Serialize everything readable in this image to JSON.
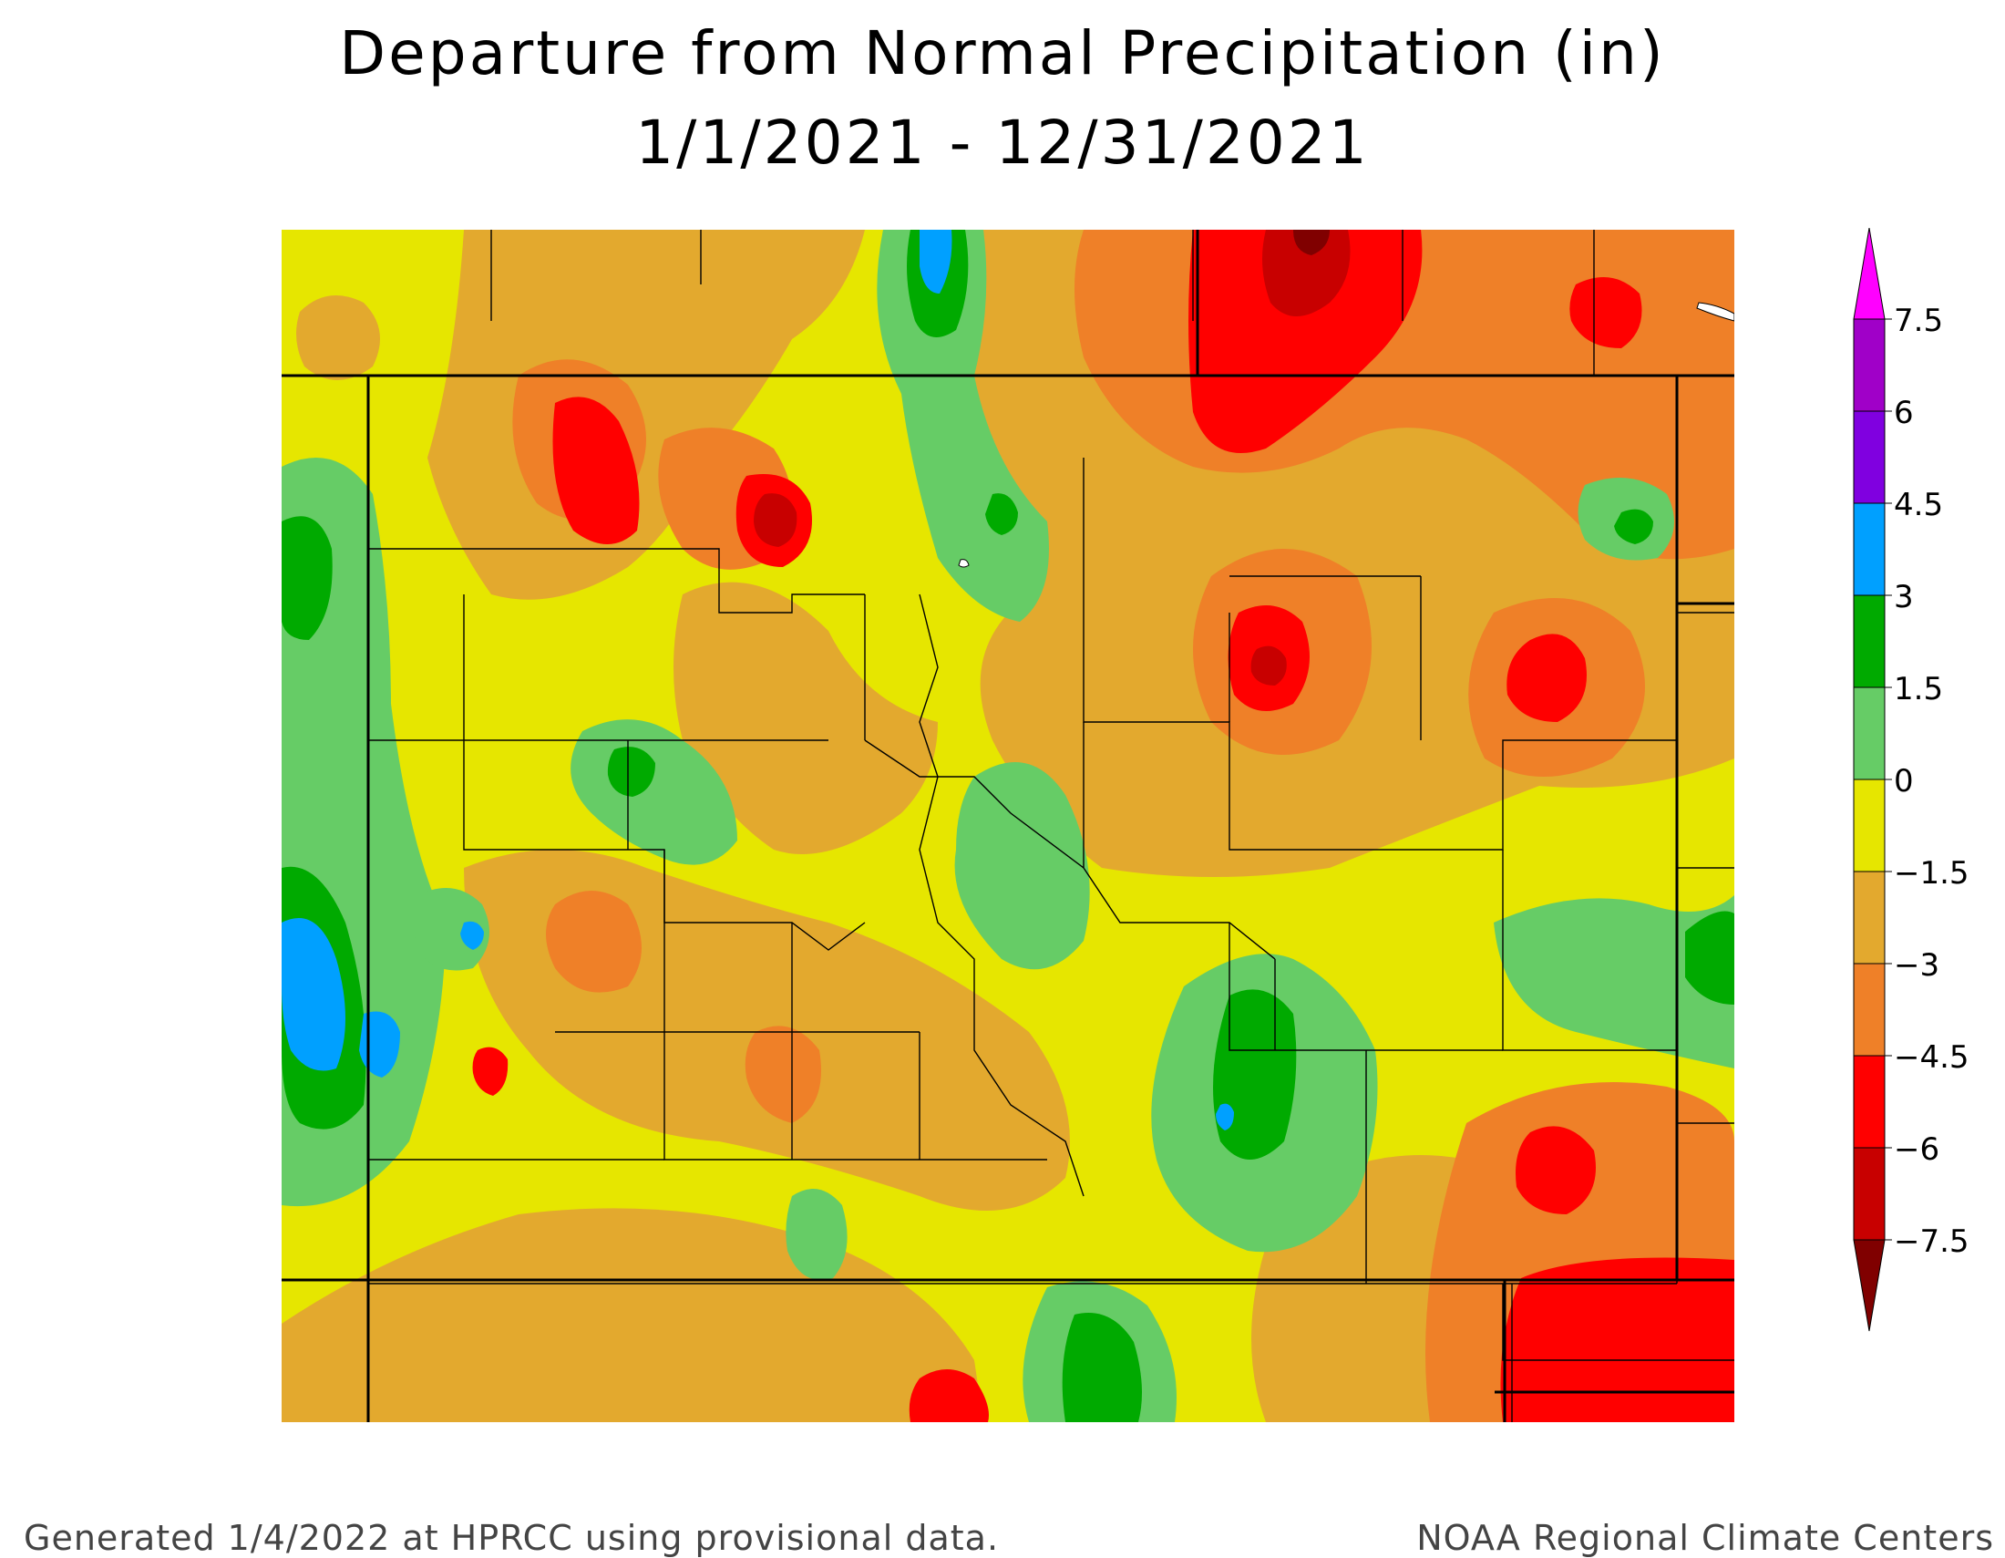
{
  "title_line1": "Departure from Normal Precipitation (in)",
  "title_line2": "1/1/2021 - 12/31/2021",
  "footer_left": "Generated 1/4/2022 at HPRCC using provisional data.",
  "footer_right": "NOAA Regional Climate Centers",
  "legend": {
    "labels": [
      "7.5",
      "6",
      "4.5",
      "3",
      "1.5",
      "0",
      "−1.5",
      "−3",
      "−4.5",
      "−6",
      "−7.5"
    ],
    "bins": [
      {
        "range": [
          6,
          7.5
        ],
        "color": "#a000c8"
      },
      {
        "range": [
          4.5,
          6
        ],
        "color": "#8000e0"
      },
      {
        "range": [
          3,
          4.5
        ],
        "color": "#00a0ff"
      },
      {
        "range": [
          1.5,
          3
        ],
        "color": "#00aa00"
      },
      {
        "range": [
          0,
          1.5
        ],
        "color": "#66cc66"
      },
      {
        "range": [
          -1.5,
          0
        ],
        "color": "#e6e600"
      },
      {
        "range": [
          -3,
          -1.5
        ],
        "color": "#e3a92e"
      },
      {
        "range": [
          -4.5,
          -3
        ],
        "color": "#ef8028"
      },
      {
        "range": [
          -6,
          -4.5
        ],
        "color": "#ff0000"
      },
      {
        "range": [
          -7.5,
          -6
        ],
        "color": "#c80000"
      }
    ],
    "over_color": "#ff00ff",
    "under_color": "#800000"
  },
  "colors": {
    "yellow": "#e6e600",
    "orange_light": "#e3a92e",
    "orange": "#ef8028",
    "red": "#ff0000",
    "darkred": "#c80000",
    "maroon": "#800000",
    "lightgreen": "#66cc66",
    "green": "#00aa00",
    "blue": "#00a0ff"
  }
}
